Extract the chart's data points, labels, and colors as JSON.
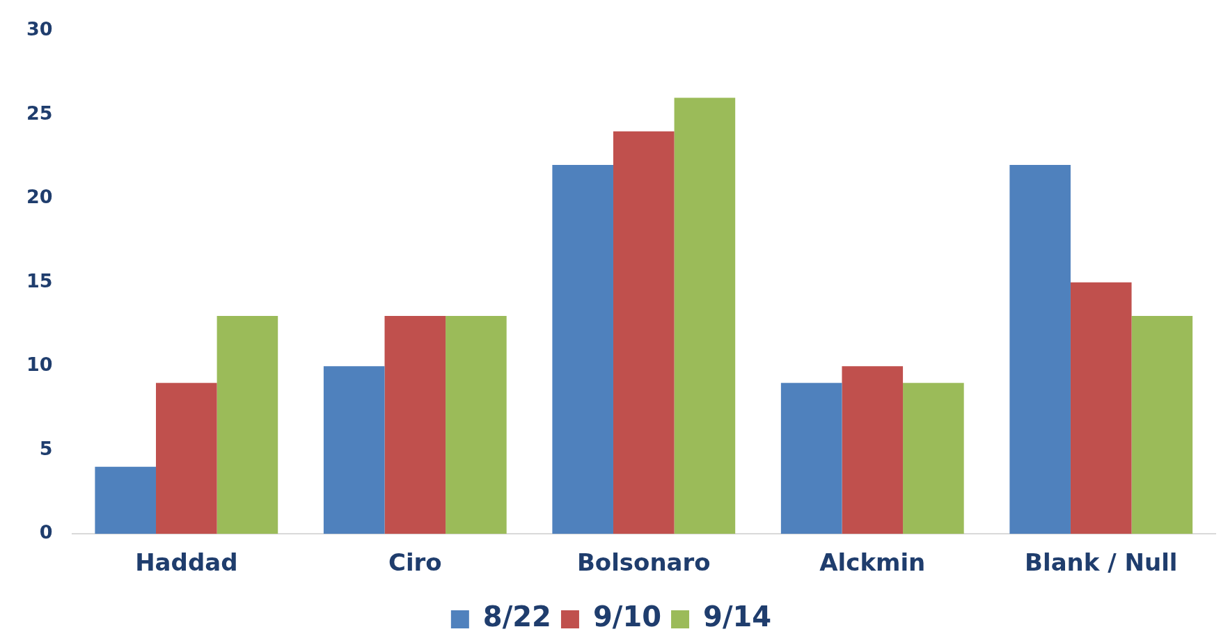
{
  "chart_data": {
    "type": "bar",
    "categories": [
      "Haddad",
      "Ciro",
      "Bolsonaro",
      "Alckmin",
      "Blank / Null"
    ],
    "series": [
      {
        "name": "8/22",
        "color": "#4f81bd",
        "values": [
          4,
          10,
          22,
          9,
          22
        ]
      },
      {
        "name": "9/10",
        "color": "#c0504d",
        "values": [
          9,
          13,
          24,
          10,
          15
        ]
      },
      {
        "name": "9/14",
        "color": "#9bbb59",
        "values": [
          13,
          13,
          26,
          9,
          13
        ]
      }
    ],
    "ylim": [
      0,
      30
    ],
    "yticks": [
      0,
      5,
      10,
      15,
      20,
      25,
      30
    ],
    "grid": false,
    "legend": "bottom"
  }
}
